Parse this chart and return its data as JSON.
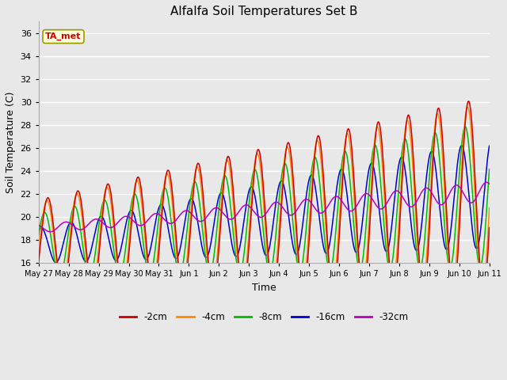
{
  "title": "Alfalfa Soil Temperatures Set B",
  "xlabel": "Time",
  "ylabel": "Soil Temperature (C)",
  "ylim": [
    16,
    37
  ],
  "annotation": "TA_met",
  "annotation_color": "#cc0000",
  "annotation_bg": "#ffffdd",
  "bg_color": "#e8e8e8",
  "grid_color": "#ffffff",
  "line_colors": {
    "-2cm": "#cc0000",
    "-4cm": "#ff8800",
    "-8cm": "#00bb00",
    "-16cm": "#0000cc",
    "-32cm": "#bb00bb"
  },
  "legend_labels": [
    "-2cm",
    "-4cm",
    "-8cm",
    "-16cm",
    "-32cm"
  ],
  "xtick_labels": [
    "May 27",
    "May 28",
    "May 29",
    "May 30",
    "May 31",
    "Jun 1",
    "Jun 2",
    "Jun 3",
    "Jun 4",
    "Jun 5",
    "Jun 6",
    "Jun 7",
    "Jun 8",
    "Jun 9",
    "Jun 10",
    "Jun 11"
  ],
  "xtick_positions": [
    0,
    1,
    2,
    3,
    4,
    5,
    6,
    7,
    8,
    9,
    10,
    11,
    12,
    13,
    14,
    15
  ],
  "ytick_labels": [
    "16",
    "18",
    "20",
    "22",
    "24",
    "26",
    "28",
    "30",
    "32",
    "34",
    "36"
  ],
  "ytick_positions": [
    16,
    18,
    20,
    22,
    24,
    26,
    28,
    30,
    32,
    34,
    36
  ]
}
